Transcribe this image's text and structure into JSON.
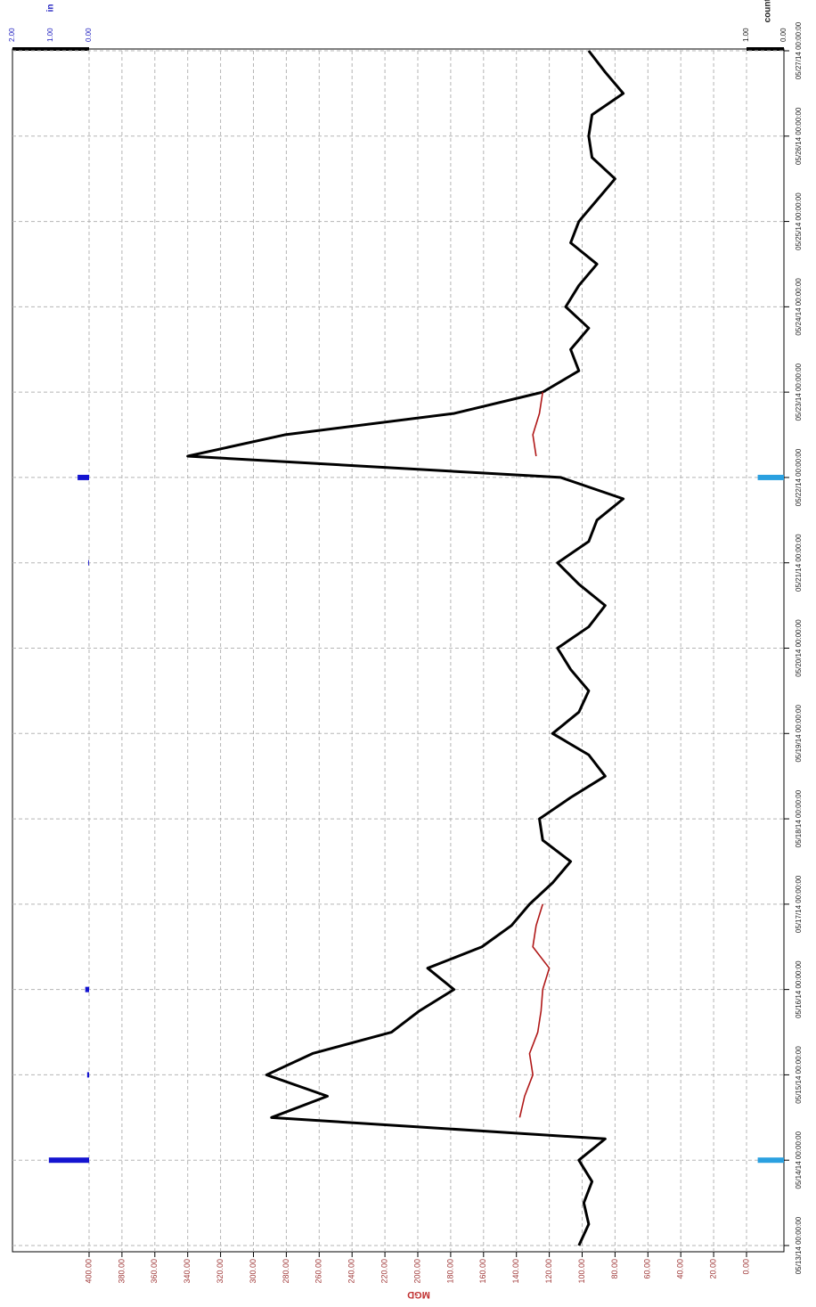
{
  "chart_data": {
    "type": "line",
    "x": [
      "05/13/14 00:00:00",
      "05/13/14 06:00:00",
      "05/13/14 12:00:00",
      "05/13/14 18:00:00",
      "05/14/14 00:00:00",
      "05/14/14 06:00:00",
      "05/14/14 12:00:00",
      "05/14/14 18:00:00",
      "05/15/14 00:00:00",
      "05/15/14 06:00:00",
      "05/15/14 12:00:00",
      "05/15/14 18:00:00",
      "05/16/14 00:00:00",
      "05/16/14 06:00:00",
      "05/16/14 12:00:00",
      "05/16/14 18:00:00",
      "05/17/14 00:00:00",
      "05/17/14 06:00:00",
      "05/17/14 12:00:00",
      "05/17/14 18:00:00",
      "05/18/14 00:00:00",
      "05/18/14 06:00:00",
      "05/18/14 12:00:00",
      "05/18/14 18:00:00",
      "05/19/14 00:00:00",
      "05/19/14 06:00:00",
      "05/19/14 12:00:00",
      "05/19/14 18:00:00",
      "05/20/14 00:00:00",
      "05/20/14 06:00:00",
      "05/20/14 12:00:00",
      "05/20/14 18:00:00",
      "05/21/14 00:00:00",
      "05/21/14 06:00:00",
      "05/21/14 12:00:00",
      "05/21/14 18:00:00",
      "05/22/14 00:00:00",
      "05/22/14 06:00:00",
      "05/22/14 12:00:00",
      "05/22/14 18:00:00",
      "05/23/14 00:00:00",
      "05/23/14 06:00:00",
      "05/23/14 12:00:00",
      "05/23/14 18:00:00",
      "05/24/14 00:00:00",
      "05/24/14 06:00:00",
      "05/24/14 12:00:00",
      "05/24/14 18:00:00",
      "05/25/14 00:00:00",
      "05/25/14 06:00:00",
      "05/25/14 12:00:00",
      "05/25/14 18:00:00",
      "05/26/14 00:00:00",
      "05/26/14 06:00:00",
      "05/26/14 12:00:00",
      "05/26/14 18:00:00",
      "05/27/14 00:00:00"
    ],
    "xlim": [
      "05/13/14 00:00:00",
      "05/27/14 00:00:00"
    ],
    "xticks": [
      "05/13/14 00:00:00",
      "05/14/14 00:00:00",
      "05/15/14 00:00:00",
      "05/16/14 00:00:00",
      "05/17/14 00:00:00",
      "05/18/14 00:00:00",
      "05/19/14 00:00:00",
      "05/20/14 00:00:00",
      "05/21/14 00:00:00",
      "05/22/14 00:00:00",
      "05/23/14 00:00:00",
      "05/24/14 00:00:00",
      "05/25/14 00:00:00",
      "05/26/14 00:00:00",
      "05/27/14 00:00:00"
    ],
    "ylabel": "MGD",
    "ylim": [
      0,
      400
    ],
    "yticks": [
      {
        "value": 0,
        "label": "0.00"
      },
      {
        "value": 20,
        "label": "20.00"
      },
      {
        "value": 40,
        "label": "40.00"
      },
      {
        "value": 60,
        "label": "60.00"
      },
      {
        "value": 80,
        "label": "80.00"
      },
      {
        "value": 100,
        "label": "100.00"
      },
      {
        "value": 120,
        "label": "120.00"
      },
      {
        "value": 140,
        "label": "140.00"
      },
      {
        "value": 160,
        "label": "160.00"
      },
      {
        "value": 180,
        "label": "180.00"
      },
      {
        "value": 200,
        "label": "200.00"
      },
      {
        "value": 220,
        "label": "220.00"
      },
      {
        "value": 240,
        "label": "240.00"
      },
      {
        "value": 260,
        "label": "260.00"
      },
      {
        "value": 280,
        "label": "280.00"
      },
      {
        "value": 300,
        "label": "300.00"
      },
      {
        "value": 320,
        "label": "320.00"
      },
      {
        "value": 340,
        "label": "340.00"
      },
      {
        "value": 360,
        "label": "360.00"
      },
      {
        "value": 380,
        "label": "380.00"
      },
      {
        "value": 400,
        "label": "400.00"
      }
    ],
    "y2label": "in",
    "y2lim": [
      0,
      2
    ],
    "y2ticks": [
      {
        "value": 2,
        "label": "2.00"
      },
      {
        "value": 1,
        "label": "1.00"
      },
      {
        "value": 0,
        "label": "0.00"
      }
    ],
    "y3label": "counts",
    "y3lim": [
      0,
      1
    ],
    "y3ticks": [
      {
        "value": 1,
        "label": "1.00"
      },
      {
        "value": 0,
        "label": "0.00"
      }
    ],
    "grid": true,
    "series": [
      {
        "color": "#000000",
        "values": [
          102,
          96,
          99,
          94,
          102,
          86,
          289,
          255,
          292,
          264,
          216,
          199,
          178,
          194,
          161,
          143,
          132,
          118,
          107,
          124,
          126,
          107,
          86,
          96,
          118,
          102,
          96,
          107,
          115,
          96,
          86,
          102,
          115,
          96,
          91,
          75,
          113,
          340,
          281,
          178,
          124,
          102,
          107,
          96,
          110,
          102,
          91,
          107,
          102,
          91,
          80,
          94,
          96,
          94,
          75,
          86,
          96
        ]
      },
      {
        "color": "#b01818",
        "values": [
          null,
          null,
          null,
          null,
          null,
          null,
          138,
          135,
          130,
          132,
          127,
          125,
          124,
          120,
          130,
          128,
          124,
          null,
          null,
          null,
          null,
          null,
          null,
          null,
          null,
          null,
          null,
          null,
          null,
          null,
          null,
          null,
          null,
          null,
          null,
          null,
          null,
          128,
          130,
          126,
          124,
          null,
          null,
          null,
          null,
          null,
          null,
          null,
          null,
          null,
          null,
          null,
          null,
          null,
          null,
          null,
          null
        ]
      },
      {
        "color": "#1414d0",
        "type": "bar",
        "axis": "y2",
        "values": [
          0,
          0,
          0,
          0,
          1.05,
          0,
          0,
          0,
          0.05,
          0,
          0,
          0,
          0.1,
          0,
          0,
          0,
          0,
          0,
          0,
          0,
          0,
          0,
          0,
          0,
          0,
          0,
          0,
          0,
          0,
          0,
          0,
          0,
          0.02,
          0,
          0,
          0,
          0.3,
          0,
          0,
          0,
          0,
          0,
          0,
          0,
          0,
          0,
          0,
          0,
          0,
          0,
          0,
          0,
          0,
          0,
          0,
          0,
          0
        ]
      },
      {
        "color": "#2aa0e0",
        "type": "bar",
        "axis": "y3",
        "values": [
          0,
          0,
          0,
          0,
          0.7,
          0,
          0,
          0,
          0,
          0,
          0,
          0,
          0,
          0,
          0,
          0,
          0,
          0,
          0,
          0,
          0,
          0,
          0,
          0,
          0,
          0,
          0,
          0,
          0,
          0,
          0,
          0,
          0,
          0,
          0,
          0,
          0.7,
          0,
          0,
          0,
          0,
          0,
          0,
          0,
          0,
          0,
          0,
          0,
          0,
          0,
          0,
          0,
          0,
          0,
          0,
          0,
          0
        ]
      }
    ]
  }
}
